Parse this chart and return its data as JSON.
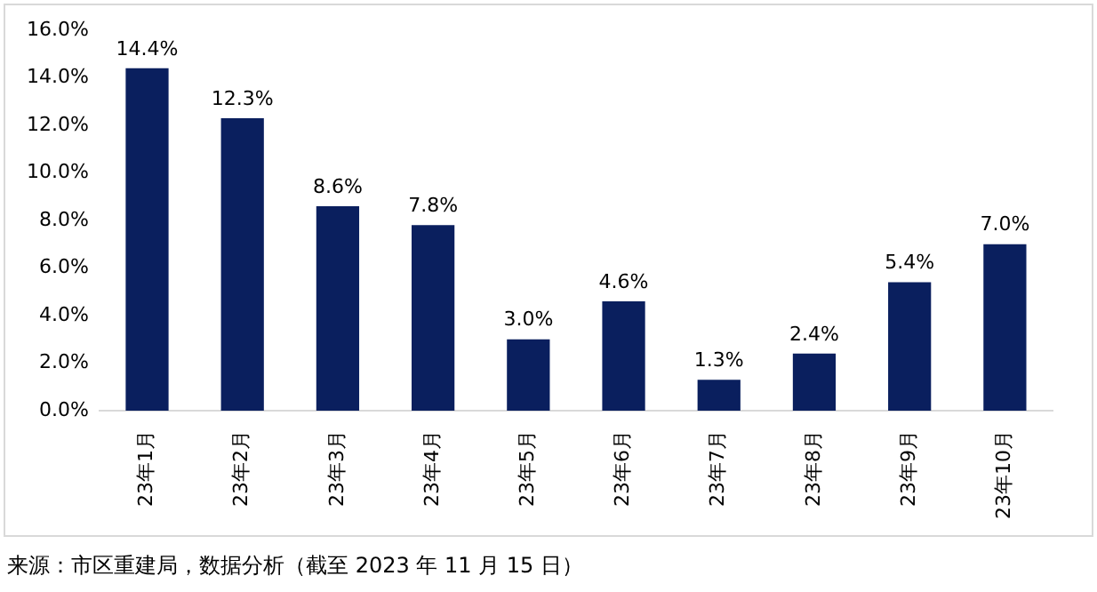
{
  "chart_data": {
    "type": "bar",
    "categories": [
      "23年1月",
      "23年2月",
      "23年3月",
      "23年4月",
      "23年5月",
      "23年6月",
      "23年7月",
      "23年8月",
      "23年9月",
      "23年10月"
    ],
    "values": [
      14.4,
      12.3,
      8.6,
      7.8,
      3.0,
      4.6,
      1.3,
      2.4,
      5.4,
      7.0
    ],
    "value_labels": [
      "14.4%",
      "12.3%",
      "8.6%",
      "7.8%",
      "3.0%",
      "4.6%",
      "1.3%",
      "2.4%",
      "5.4%",
      "7.0%"
    ],
    "color": "#0a1f5e",
    "ylim": [
      0,
      16
    ],
    "yticks": [
      {
        "value": 0,
        "label": "0.0%"
      },
      {
        "value": 2,
        "label": "2.0%"
      },
      {
        "value": 4,
        "label": "4.0%"
      },
      {
        "value": 6,
        "label": "6.0%"
      },
      {
        "value": 8,
        "label": "8.0%"
      },
      {
        "value": 10,
        "label": "10.0%"
      },
      {
        "value": 12,
        "label": "12.0%"
      },
      {
        "value": 14,
        "label": "14.0%"
      },
      {
        "value": 16,
        "label": "16.0%"
      }
    ],
    "annotations": [
      "来源：市区重建局，数据分析（截至 2023 年 11 月 15 日）"
    ]
  }
}
